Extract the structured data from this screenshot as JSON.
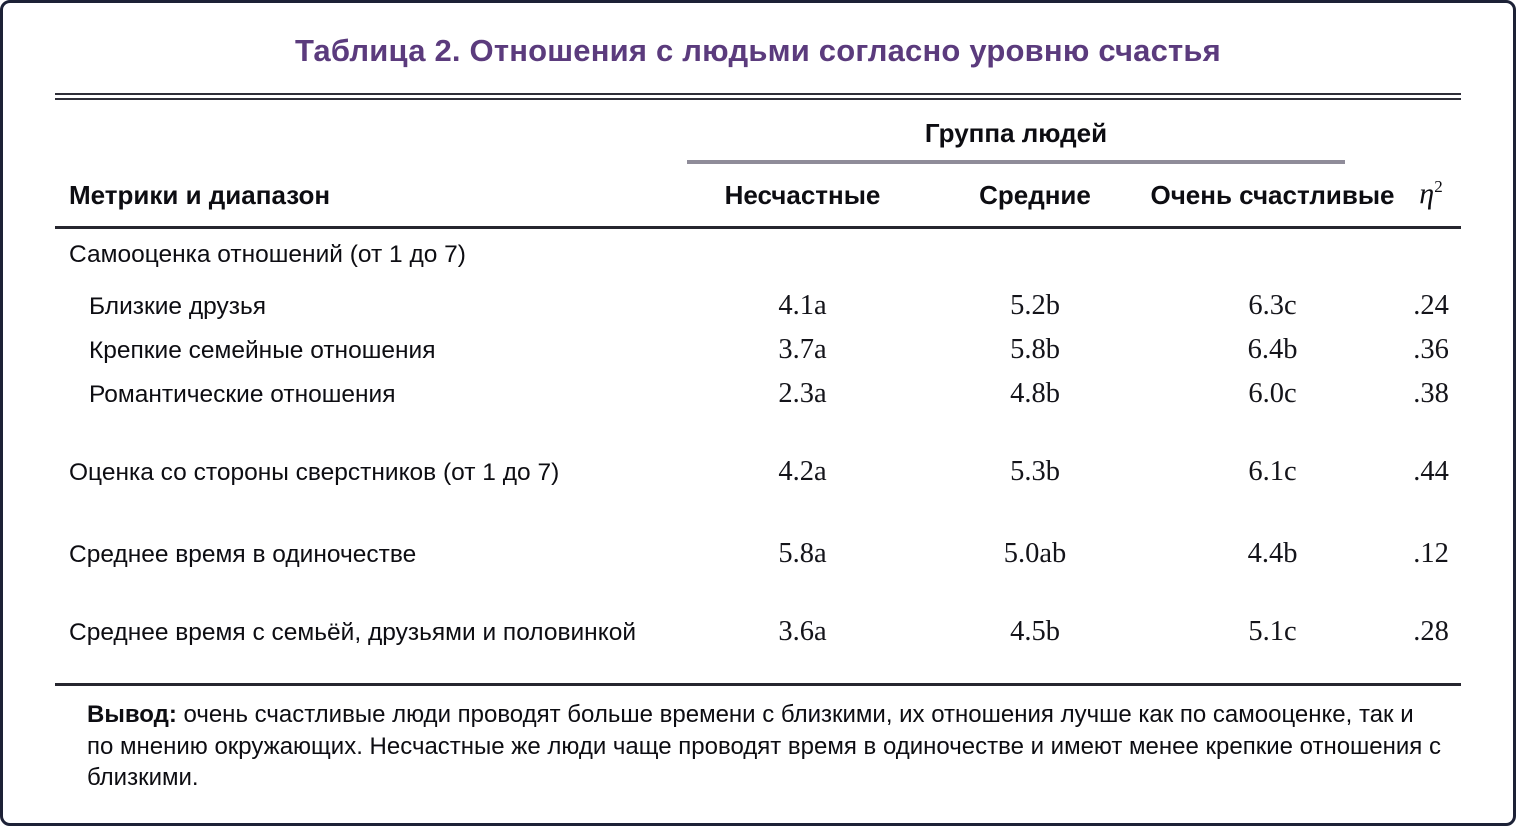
{
  "title": "Таблица 2. Отношения с людьми согласно уровню счастья",
  "table": {
    "group_header": "Группа людей",
    "label_column_header": "Метрики и диапазон",
    "group_columns": [
      "Несчастные",
      "Средние",
      "Очень счастливые"
    ],
    "eta": {
      "symbol": "η",
      "sup": "2"
    },
    "rows": [
      {
        "label": "Самооценка отношений (от 1 до 7)",
        "values": [
          "",
          "",
          "",
          ""
        ]
      },
      {
        "label": "Близкие друзья",
        "values": [
          "4.1a",
          "5.2b",
          "6.3c",
          ".24"
        ]
      },
      {
        "label": "Крепкие семейные отношения",
        "values": [
          "3.7a",
          "5.8b",
          "6.4b",
          ".36"
        ]
      },
      {
        "label": "Романтические отношения",
        "values": [
          "2.3a",
          "4.8b",
          "6.0c",
          ".38"
        ]
      },
      {
        "label": "Оценка со стороны сверстников (от 1 до 7)",
        "values": [
          "4.2a",
          "5.3b",
          "6.1c",
          ".44"
        ]
      },
      {
        "label": "Среднее время в одиночестве",
        "values": [
          "5.8a",
          "5.0ab",
          "4.4b",
          ".12"
        ]
      },
      {
        "label": "Среднее время с семьёй, друзьями и половинкой",
        "values": [
          "3.6a",
          "4.5b",
          "5.1c",
          ".28"
        ]
      }
    ]
  },
  "note": {
    "label": "Вывод:",
    "text": " очень счастливые люди проводят больше времени с близкими, их отношения лучше как по самооценке, так и по мнению окружающих. Несчастные же люди чаще проводят время в одиночестве и имеют менее крепкие отношения с близкими."
  },
  "colors": {
    "title": "#5b3b7d",
    "border": "#1c2136",
    "group_underline": "#8f8c99",
    "rule": "#26262e"
  }
}
